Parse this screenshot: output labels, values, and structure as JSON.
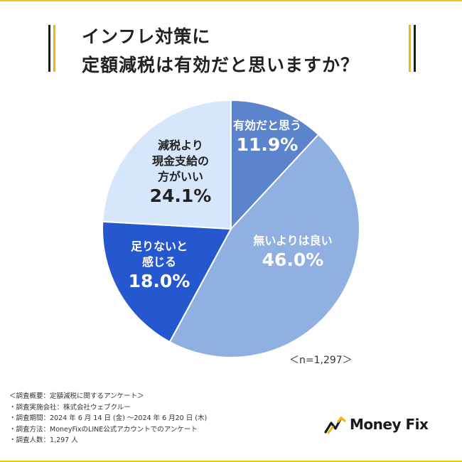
{
  "title": {
    "line1": "インフレ対策に",
    "line2": "定額減税は有効だと思いますか？"
  },
  "chart_data": {
    "type": "pie",
    "title": "インフレ対策に定額減税は有効だと思いますか？",
    "start": "12 o'clock, clockwise",
    "slices": [
      {
        "label_lines": [
          "有効だと思う"
        ],
        "value": 11.9,
        "value_text": "11.9%",
        "color": "#5b84cc",
        "text_color": "#ffffff"
      },
      {
        "label_lines": [
          "無いよりは良い"
        ],
        "value": 46.0,
        "value_text": "46.0%",
        "color": "#8fb0e0",
        "text_color": "#ffffff"
      },
      {
        "label_lines": [
          "足りないと",
          "感じる"
        ],
        "value": 18.0,
        "value_text": "18.0%",
        "color": "#2558cf",
        "text_color": "#ffffff"
      },
      {
        "label_lines": [
          "減税より",
          "現金支給の",
          "方がいい"
        ],
        "value": 24.1,
        "value_text": "24.1%",
        "color": "#d6e6fb",
        "text_color": "#222222"
      }
    ],
    "n_label": "＜n=1,297＞"
  },
  "notes": [
    "＜調査概要：定額減税に関するアンケート＞",
    "・調査実施会社：株式会社ウェブクルー",
    "・調査期間：2024 年 6 月 14 日 (金) 〜2024 年 6 月20 日 (木)",
    "・調査方法：MoneyFixのLINE公式アカウントでのアンケート",
    "・調査人数：1,297 人"
  ],
  "logo": {
    "text": "Money Fix"
  },
  "colors": {
    "accent": "#f2b705",
    "edge": "#f2c318"
  }
}
